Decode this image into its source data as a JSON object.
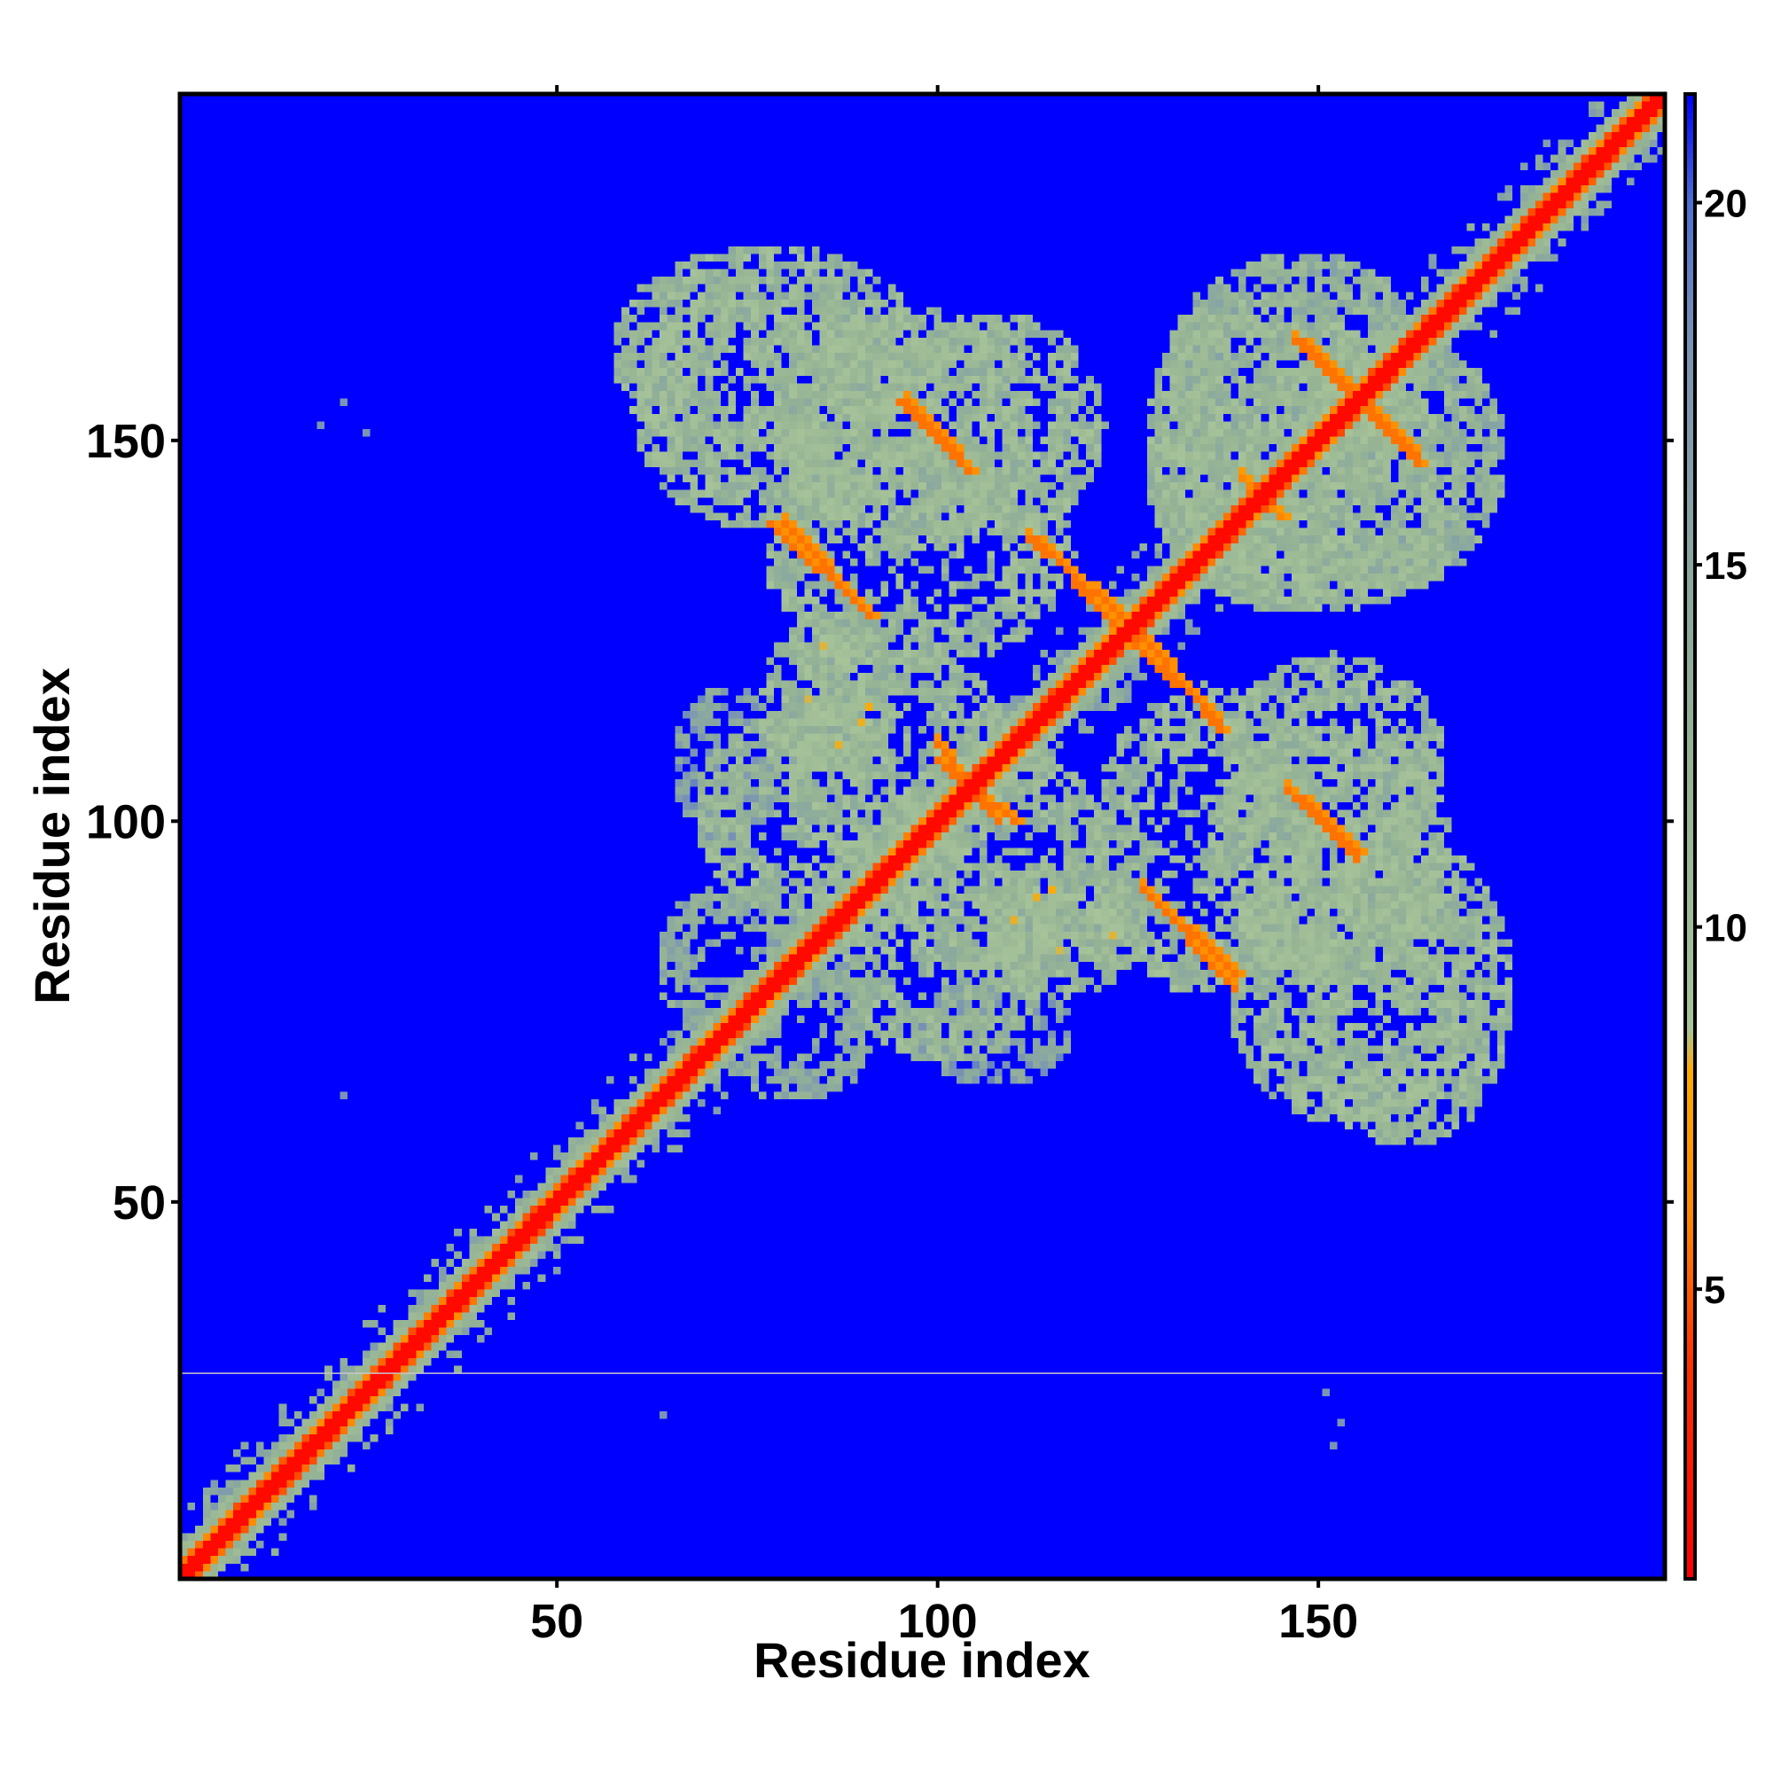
{
  "chart_data": {
    "type": "heatmap",
    "title": "",
    "xlabel": "Residue index",
    "ylabel": "Residue index",
    "xlim": [
      1,
      195
    ],
    "ylim": [
      1,
      195
    ],
    "n_residues": 195,
    "x_ticks": [
      50,
      100,
      150
    ],
    "y_ticks": [
      50,
      100,
      150
    ],
    "x_tick_labels": [
      "50",
      "100",
      "150"
    ],
    "y_tick_labels": [
      "50",
      "100",
      "150"
    ],
    "colorbar": {
      "range": [
        1,
        21.5
      ],
      "ticks": [
        5,
        10,
        15,
        20
      ],
      "tick_labels": [
        "5",
        "10",
        "15",
        "20"
      ],
      "colors": [
        {
          "value": 1,
          "color": "#ff0000"
        },
        {
          "value": 4,
          "color": "#ff3300"
        },
        {
          "value": 6,
          "color": "#ff8800"
        },
        {
          "value": 8,
          "color": "#ffaa00"
        },
        {
          "value": 8.6,
          "color": "#a8c49a"
        },
        {
          "value": 12,
          "color": "#96b494"
        },
        {
          "value": 15,
          "color": "#8aa8a0"
        },
        {
          "value": 18,
          "color": "#7a94b4"
        },
        {
          "value": 20,
          "color": "#5070d0"
        },
        {
          "value": 21.5,
          "color": "#0000ff"
        }
      ]
    },
    "background_value": 21.5,
    "diagonal_band": {
      "core_value": 1.5,
      "near_value": 5.5,
      "halo_value": 12
    },
    "antiparallel_strand_pairs": [
      {
        "start": [
          95,
          155
        ],
        "end": [
          104,
          146
        ],
        "value": 5.5
      },
      {
        "start": [
          78,
          139
        ],
        "end": [
          91,
          127
        ],
        "value": 5.5
      },
      {
        "start": [
          113,
          137
        ],
        "end": [
          123,
          126
        ],
        "value": 5.5
      },
      {
        "start": [
          127,
          124
        ],
        "end": [
          137,
          112
        ],
        "value": 5.5
      },
      {
        "start": [
          148,
          103
        ],
        "end": [
          155,
          96
        ],
        "value": 5.5
      },
      {
        "start": [
          127,
          91
        ],
        "end": [
          139,
          80
        ],
        "value": 5.5
      },
      {
        "start": [
          148,
          163
        ],
        "end": [
          163,
          147
        ],
        "value": 5.5
      },
      {
        "start": [
          100,
          108
        ],
        "end": [
          110,
          100
        ],
        "value": 5.5
      },
      {
        "start": [
          140,
          145
        ],
        "end": [
          145,
          140
        ],
        "value": 6
      }
    ],
    "contact_regions": [
      {
        "x": [
          60,
          95
        ],
        "y": [
          138,
          170
        ],
        "value": 12
      },
      {
        "x": [
          93,
          122
        ],
        "y": [
          137,
          167
        ],
        "value": 12
      },
      {
        "x": [
          127,
          160
        ],
        "y": [
          128,
          170
        ],
        "value": 12
      },
      {
        "x": [
          143,
          175
        ],
        "y": [
          130,
          165
        ],
        "value": 13
      },
      {
        "x": [
          68,
          97
        ],
        "y": [
          87,
          115
        ],
        "value": 12
      },
      {
        "x": [
          77,
          95
        ],
        "y": [
          107,
          127
        ],
        "value": 12
      },
      {
        "x": [
          93,
          123
        ],
        "y": [
          79,
          110
        ],
        "value": 12
      },
      {
        "x": [
          120,
          150
        ],
        "y": [
          77,
          118
        ],
        "value": 12
      },
      {
        "x": [
          135,
          168
        ],
        "y": [
          78,
          113
        ],
        "value": 12
      },
      {
        "x": [
          147,
          176
        ],
        "y": [
          57,
          98
        ],
        "value": 12
      },
      {
        "x": [
          70,
          92
        ],
        "y": [
          63,
          82
        ],
        "value": 14
      },
      {
        "x": [
          97,
          118
        ],
        "y": [
          65,
          80
        ],
        "value": 16
      },
      {
        "x": [
          110,
          125
        ],
        "y": [
          82,
          92
        ],
        "value": 11
      }
    ],
    "isolated_points": [
      {
        "x": 22,
        "y": 155,
        "value": 18
      },
      {
        "x": 19,
        "y": 152,
        "value": 18
      },
      {
        "x": 25,
        "y": 151,
        "value": 18
      },
      {
        "x": 22,
        "y": 64,
        "value": 18
      },
      {
        "x": 64,
        "y": 22,
        "value": 18
      },
      {
        "x": 151,
        "y": 25,
        "value": 18
      },
      {
        "x": 153,
        "y": 21,
        "value": 18
      },
      {
        "x": 152,
        "y": 18,
        "value": 18
      }
    ],
    "horizontal_line": {
      "y": 27.5,
      "color": "#c8c8c8"
    }
  }
}
